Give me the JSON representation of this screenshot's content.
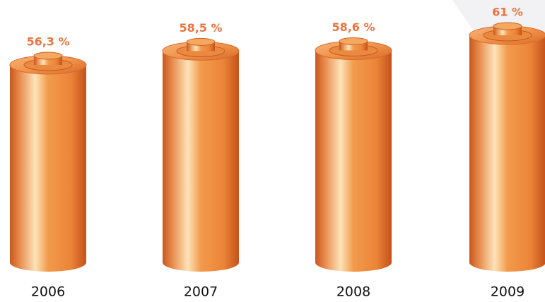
{
  "chart_data": {
    "type": "bar",
    "categories": [
      "2006",
      "2007",
      "2008",
      "2009"
    ],
    "values": [
      56.3,
      58.5,
      58.6,
      61
    ],
    "value_labels": [
      "56,3 %",
      "58,5 %",
      "58,6 %",
      "61 %"
    ],
    "color": "#ef8c3c"
  }
}
